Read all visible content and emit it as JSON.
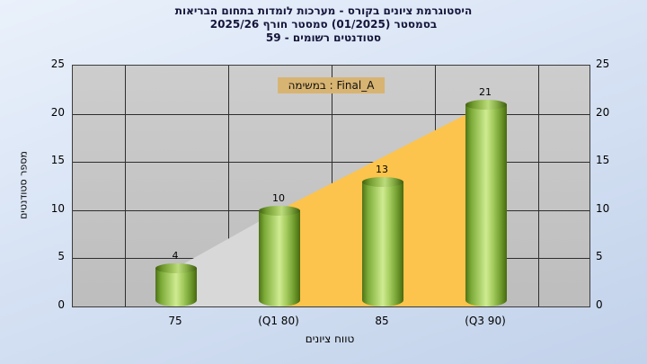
{
  "title": {
    "line1": "היסטוגרמת ציונים בקורס - מערכות לומדות בתחום הבריאות",
    "line2": "בסמסטר (01/2025) סמסטר חורף 2025/26",
    "line3": "סטודנטים רשומים - 59"
  },
  "legend": {
    "label": "במשימה : Final_A"
  },
  "axes": {
    "y_label": "מספר סטודנטים",
    "x_label": "טווח ציונים"
  },
  "chart_data": {
    "type": "bar",
    "title": "היסטוגרמת ציונים בקורס - מערכות לומדות בתחום הבריאות בסמסטר (01/2025) סמסטר חורף 2025/26, סטודנטים רשומים - 59",
    "categories": [
      "75",
      "(Q1 80)",
      "85",
      "(Q3 90)"
    ],
    "values": [
      4,
      10,
      13,
      21
    ],
    "bar_labels": [
      4,
      10,
      13,
      21
    ],
    "yticks": [
      0,
      5,
      10,
      15,
      20,
      25
    ],
    "ylim": [
      0,
      25
    ],
    "xlabel": "טווח ציונים",
    "ylabel": "מספר סטודנטים",
    "legend_entry": "במשימה : Final_A",
    "grid": true,
    "legend_position": "top-center",
    "overlays": [
      {
        "name": "area-gray",
        "type": "area",
        "from": 0,
        "to": 1,
        "values": [
          4,
          10
        ],
        "color": "#d8d8d8"
      },
      {
        "name": "area-orange",
        "type": "area",
        "from": 1,
        "to": 3,
        "values": [
          10,
          21
        ],
        "color": "#fcc44c"
      }
    ],
    "colors": {
      "bar": "#8fbc3f",
      "area_gray": "#d8d8d8",
      "area_orange": "#fcc44c",
      "plot_background": "#c4c4c4",
      "page_background": "#d6e2f3",
      "legend_background": "#d8b472"
    }
  }
}
